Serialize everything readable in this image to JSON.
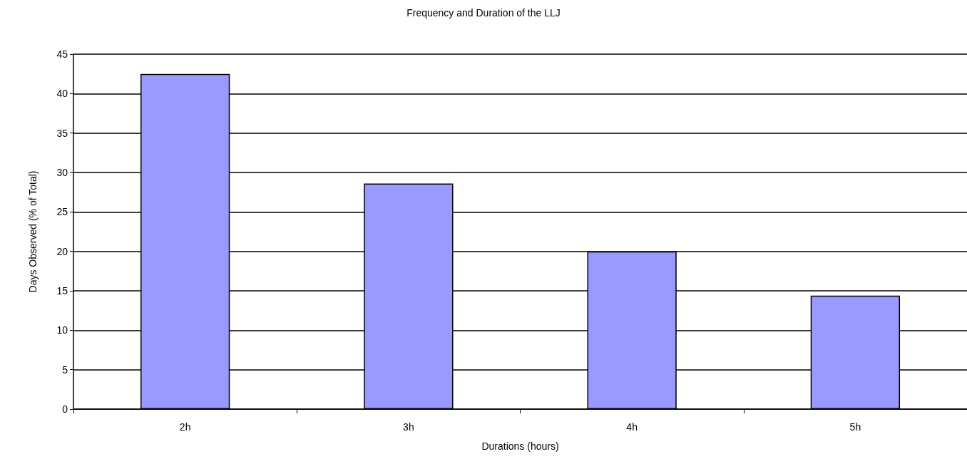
{
  "chart_data": {
    "type": "bar",
    "title": "Frequency and Duration of the LLJ",
    "xlabel": "Durations (hours)",
    "ylabel": "Days Observed (% of Total)",
    "categories": [
      "2h",
      "3h",
      "4h",
      "5h"
    ],
    "values": [
      42.5,
      28.6,
      20,
      14.4
    ],
    "color": "#9999ff",
    "ylim": [
      0,
      45
    ],
    "yticks": [
      0,
      5,
      10,
      15,
      20,
      25,
      30,
      35,
      40,
      45
    ],
    "grid": "y"
  }
}
